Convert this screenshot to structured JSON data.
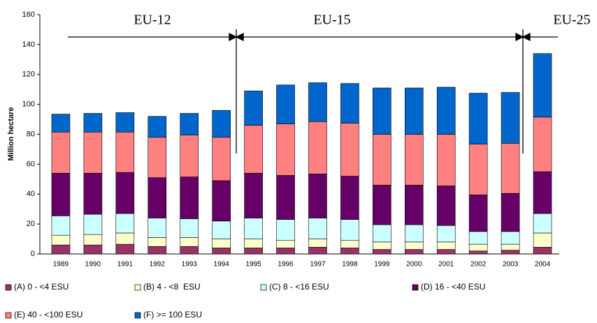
{
  "chart_data": {
    "type": "stacked_bar",
    "y_label": "Million hectare",
    "categories": [
      "1989",
      "1990",
      "1991",
      "1992",
      "1993",
      "1994",
      "1995",
      "1996",
      "1997",
      "1998",
      "1999",
      "2000",
      "2001",
      "2002",
      "2003",
      "2004"
    ],
    "series": [
      {
        "name": "(A) 0 - <4 ESU",
        "color": "#993366",
        "values": [
          6,
          6,
          6.5,
          5,
          5,
          4,
          4,
          4,
          4.5,
          4,
          3,
          3,
          3,
          2,
          2.5,
          4.5
        ]
      },
      {
        "name": "(B) 4 - <8  ESU",
        "color": "#FFFFCC",
        "values": [
          6.5,
          7,
          7.5,
          6,
          6,
          6,
          6,
          5,
          5.5,
          5,
          5,
          5,
          5,
          4.5,
          4,
          9.5
        ]
      },
      {
        "name": "(C) 8 - <16 ESU",
        "color": "#CCFFFF",
        "values": [
          13,
          13.5,
          13,
          13,
          12.5,
          12,
          14,
          14,
          14,
          14,
          11.5,
          11.5,
          11,
          8.5,
          8.5,
          13
        ]
      },
      {
        "name": "(D) 16 - <40 ESU",
        "color": "#660066",
        "values": [
          28.5,
          27.5,
          27.5,
          27,
          28,
          27,
          30,
          29.5,
          29.5,
          29,
          26.5,
          26.5,
          26.5,
          24.5,
          25.5,
          28
        ]
      },
      {
        "name": "(E) 40 - <100 ESU",
        "color": "#FF8080",
        "values": [
          27.5,
          27.5,
          27,
          27,
          28,
          29,
          32,
          34.5,
          35,
          35.5,
          34,
          34,
          34.5,
          34,
          33.5,
          36.5
        ]
      },
      {
        "name": "(F) >= 100 ESU",
        "color": "#0066CC",
        "values": [
          12,
          12.5,
          13,
          14,
          14.5,
          18,
          23,
          26,
          26,
          26.5,
          31,
          31,
          31.5,
          34,
          34,
          42.5
        ]
      }
    ],
    "annotations": [
      "EU-12",
      "EU-15",
      "EU-25"
    ],
    "ylim": [
      0,
      160
    ],
    "yticks": [
      0,
      20,
      40,
      60,
      80,
      100,
      120,
      140,
      160
    ]
  }
}
